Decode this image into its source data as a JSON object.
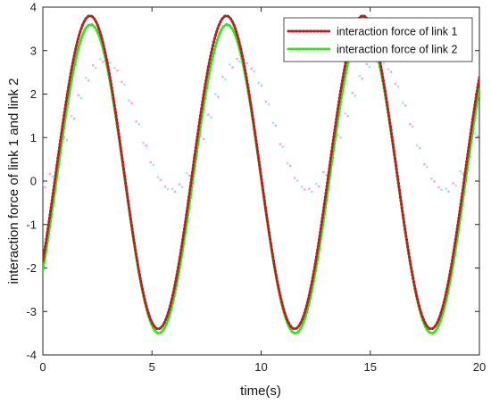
{
  "chart_data": {
    "type": "line",
    "title": "",
    "xlabel": "time(s)",
    "ylabel": "interaction force of link 1 and link 2",
    "xlim": [
      0,
      20
    ],
    "ylim": [
      -4,
      4
    ],
    "xticks": [
      0,
      5,
      10,
      15,
      20
    ],
    "yticks": [
      -4,
      -3,
      -2,
      -1,
      0,
      1,
      2,
      3,
      4
    ],
    "grid": false,
    "legend_position": "top-right",
    "series": [
      {
        "name": "interaction force of link 1",
        "color": "#b22222",
        "style": "dotted",
        "model": "y = 0.2 + 3.6*sin(2*pi*(t - 0.6)/6.25)",
        "x": [
          0,
          0.5,
          1,
          1.5,
          2,
          2.16,
          3,
          4,
          5,
          5.3,
          6,
          7,
          8,
          8.4,
          9,
          10,
          11,
          11.6,
          12,
          13,
          14,
          14.7,
          15,
          16,
          17,
          17.9,
          19,
          20
        ],
        "values": [
          -1.8,
          0.1,
          2.2,
          3.5,
          3.8,
          3.8,
          2.9,
          0.4,
          -2.4,
          -3.4,
          -2.9,
          -0.2,
          2.8,
          3.8,
          3.3,
          1.0,
          -2.1,
          -3.4,
          -3.1,
          -1.0,
          2.0,
          3.8,
          3.5,
          1.3,
          -1.9,
          -3.4,
          -1.7,
          2.0
        ]
      },
      {
        "name": "interaction force of link 2",
        "color": "#32e61e",
        "style": "dotted",
        "model": "y = 0.05 + 3.55*sin(2*pi*(t - 0.63)/6.25)",
        "x": [
          0,
          0.5,
          1,
          1.5,
          2,
          2.2,
          3,
          4,
          5,
          5.4,
          6,
          7,
          8,
          8.4,
          9,
          10,
          11,
          11.7,
          12,
          13,
          14,
          14.7,
          15,
          16,
          17,
          18,
          19,
          20
        ],
        "values": [
          -2.0,
          -0.2,
          2.0,
          3.3,
          3.6,
          3.6,
          2.7,
          0.2,
          -2.6,
          -3.5,
          -3.0,
          -0.4,
          2.6,
          3.6,
          3.2,
          0.8,
          -2.3,
          -3.5,
          -3.2,
          -1.2,
          1.8,
          3.6,
          3.4,
          1.1,
          -2.1,
          -3.5,
          -1.9,
          1.8
        ]
      }
    ]
  }
}
